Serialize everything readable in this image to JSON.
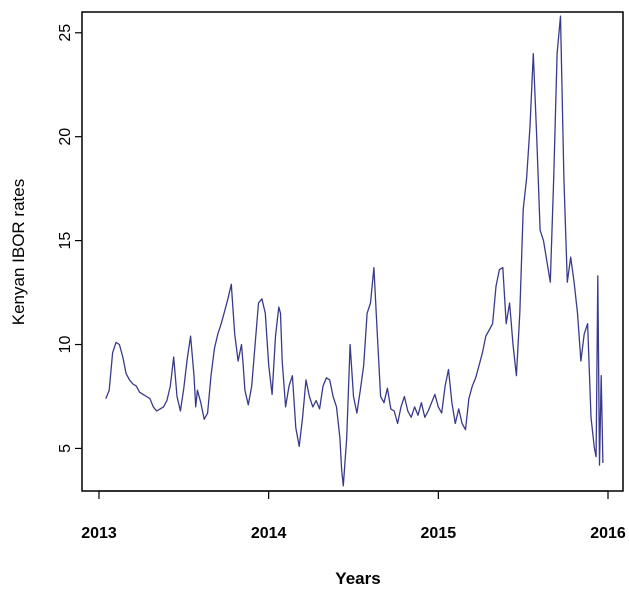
{
  "chart_data": {
    "type": "line",
    "title": "",
    "xlabel": "Years",
    "ylabel": "Kenyan IBOR rates",
    "xlim": [
      2013.0,
      2016.0
    ],
    "ylim": [
      3,
      26
    ],
    "x_ticks": [
      2013,
      2014,
      2015,
      2016
    ],
    "x_tick_labels": [
      "2013",
      "2014",
      "2015",
      "2016"
    ],
    "y_ticks": [
      5,
      10,
      15,
      20,
      25
    ],
    "y_tick_labels": [
      "5",
      "10",
      "15",
      "20",
      "25"
    ],
    "grid": false,
    "legend": "none",
    "line_color": "#3a3a8c",
    "series": [
      {
        "x": [
          2013.04,
          2013.06,
          2013.08,
          2013.1,
          2013.12,
          2013.14,
          2013.16,
          2013.18,
          2013.2,
          2013.22,
          2013.24,
          2013.26,
          2013.28,
          2013.3,
          2013.32,
          2013.34,
          2013.36,
          2013.38,
          2013.4,
          2013.42,
          2013.44,
          2013.46,
          2013.48,
          2013.5,
          2013.51,
          2013.52,
          2013.54,
          2013.56,
          2013.57,
          2013.58,
          2013.6,
          2013.62,
          2013.64,
          2013.66,
          2013.68,
          2013.7,
          2013.72,
          2013.74,
          2013.76,
          2013.78,
          2013.8,
          2013.82,
          2013.84,
          2013.85,
          2013.86,
          2013.88,
          2013.9,
          2013.92,
          2013.94,
          2013.96,
          2013.98,
          2014.0,
          2014.02,
          2014.04,
          2014.06,
          2014.07,
          2014.08,
          2014.1,
          2014.12,
          2014.14,
          2014.16,
          2014.18,
          2014.2,
          2014.22,
          2014.24,
          2014.26,
          2014.28,
          2014.3,
          2014.32,
          2014.34,
          2014.36,
          2014.38,
          2014.4,
          2014.42,
          2014.43,
          2014.44,
          2014.46,
          2014.48,
          2014.5,
          2014.52,
          2014.54,
          2014.56,
          2014.58,
          2014.6,
          2014.62,
          2014.64,
          2014.66,
          2014.68,
          2014.7,
          2014.72,
          2014.74,
          2014.76,
          2014.78,
          2014.8,
          2014.82,
          2014.84,
          2014.86,
          2014.88,
          2014.9,
          2014.92,
          2014.94,
          2014.96,
          2014.98,
          2015.0,
          2015.02,
          2015.04,
          2015.06,
          2015.08,
          2015.1,
          2015.12,
          2015.14,
          2015.16,
          2015.18,
          2015.2,
          2015.22,
          2015.24,
          2015.26,
          2015.28,
          2015.3,
          2015.32,
          2015.34,
          2015.36,
          2015.38,
          2015.4,
          2015.42,
          2015.44,
          2015.46,
          2015.48,
          2015.5,
          2015.52,
          2015.54,
          2015.56,
          2015.58,
          2015.6,
          2015.62,
          2015.64,
          2015.66,
          2015.68,
          2015.7,
          2015.72,
          2015.74,
          2015.76,
          2015.78,
          2015.8,
          2015.82,
          2015.84,
          2015.86,
          2015.88,
          2015.9,
          2015.92,
          2015.93,
          2015.94,
          2015.95,
          2015.96,
          2015.97
        ],
        "y": [
          7.4,
          7.8,
          9.6,
          10.1,
          10.0,
          9.4,
          8.6,
          8.3,
          8.1,
          8.0,
          7.7,
          7.6,
          7.5,
          7.4,
          7.0,
          6.8,
          6.9,
          7.0,
          7.3,
          8.0,
          9.4,
          7.5,
          6.8,
          7.9,
          8.6,
          9.3,
          10.4,
          8.5,
          7.0,
          7.8,
          7.2,
          6.4,
          6.7,
          8.5,
          9.8,
          10.5,
          11.0,
          11.6,
          12.2,
          12.9,
          10.5,
          9.2,
          10.0,
          9.0,
          7.8,
          7.1,
          8.0,
          10.0,
          12.0,
          12.2,
          11.5,
          9.0,
          7.6,
          10.4,
          11.8,
          11.5,
          9.2,
          7.0,
          8.0,
          8.5,
          6.0,
          5.1,
          6.5,
          8.3,
          7.5,
          7.0,
          7.3,
          6.9,
          8.0,
          8.4,
          8.3,
          7.5,
          7.0,
          5.5,
          4.0,
          3.2,
          5.5,
          10.0,
          7.5,
          6.7,
          7.8,
          9.0,
          11.5,
          12.0,
          13.7,
          10.5,
          7.5,
          7.2,
          7.9,
          6.9,
          6.8,
          6.2,
          7.0,
          7.5,
          6.8,
          6.5,
          7.0,
          6.6,
          7.2,
          6.5,
          6.8,
          7.2,
          7.6,
          7.0,
          6.7,
          8.0,
          8.8,
          7.2,
          6.2,
          6.9,
          6.2,
          5.9,
          7.4,
          8.0,
          8.4,
          9.0,
          9.6,
          10.4,
          10.7,
          11.0,
          12.8,
          13.6,
          13.7,
          11.0,
          12.0,
          10.0,
          8.5,
          11.5,
          16.5,
          18.0,
          20.5,
          24.0,
          20.0,
          15.5,
          15.0,
          14.0,
          13.0,
          18.0,
          24.0,
          25.8,
          18.0,
          13.0,
          14.2,
          13.0,
          11.5,
          9.2,
          10.5,
          11.0,
          6.5,
          5.0,
          4.6,
          13.3,
          4.2,
          8.5,
          4.3
        ]
      }
    ]
  }
}
